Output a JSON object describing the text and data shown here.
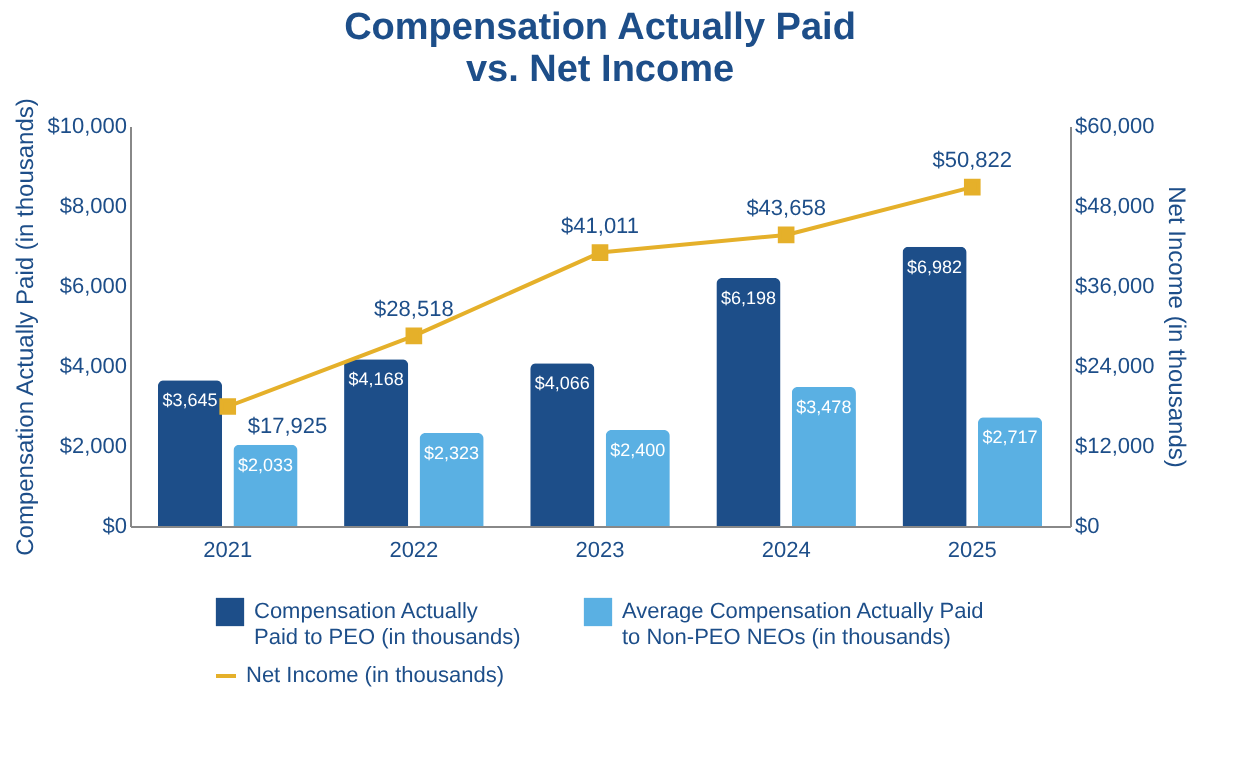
{
  "chart_data": {
    "type": "bar",
    "title": "Compensation Actually Paid vs. Net Income",
    "ylabel": "Compensation Actually Paid (in thousands)",
    "y2label": "Net Income (in thousands)",
    "categories": [
      "2021",
      "2022",
      "2023",
      "2024",
      "2025"
    ],
    "series": [
      {
        "name": "Compensation Actually Paid to PEO (in thousands)",
        "color": "#1d4e89",
        "values": [
          3645,
          4168,
          4066,
          6198,
          6982
        ],
        "value_labels": [
          "$3,645",
          "$4,168",
          "$4,066",
          "$6,198",
          "$6,982"
        ]
      },
      {
        "name": "Average Compensation Actually Paid to Non-PEO NEOs (in thousands)",
        "color": "#5ab0e3",
        "values": [
          2033,
          2323,
          2400,
          3478,
          2717
        ],
        "value_labels": [
          "$2,033",
          "$2,323",
          "$2,400",
          "$3,478",
          "$2,717"
        ]
      },
      {
        "name": "Net Income (in thousands)",
        "type": "line",
        "axis": "y2",
        "color": "#e5b02a",
        "marker": "square",
        "line_style": "solid",
        "values": [
          17925,
          28518,
          41011,
          43658,
          50822
        ],
        "value_labels": [
          "$17,925",
          "$28,518",
          "$41,011",
          "$43,658",
          "$50,822"
        ]
      }
    ],
    "ylim": [
      0,
      10000
    ],
    "yticks": [
      {
        "value": 0,
        "label": "$0"
      },
      {
        "value": 2000,
        "label": "$2,000"
      },
      {
        "value": 4000,
        "label": "$4,000"
      },
      {
        "value": 6000,
        "label": "$6,000"
      },
      {
        "value": 8000,
        "label": "$8,000"
      },
      {
        "value": 10000,
        "label": "$10,000"
      }
    ],
    "y2lim": [
      0,
      60000
    ],
    "y2ticks": [
      {
        "value": 0,
        "label": "$0"
      },
      {
        "value": 12000,
        "label": "$12,000"
      },
      {
        "value": 24000,
        "label": "$24,000"
      },
      {
        "value": 36000,
        "label": "$36,000"
      },
      {
        "value": 48000,
        "label": "$48,000"
      },
      {
        "value": 60000,
        "label": "$60,000"
      }
    ],
    "grid": false,
    "legend": "bottom"
  }
}
